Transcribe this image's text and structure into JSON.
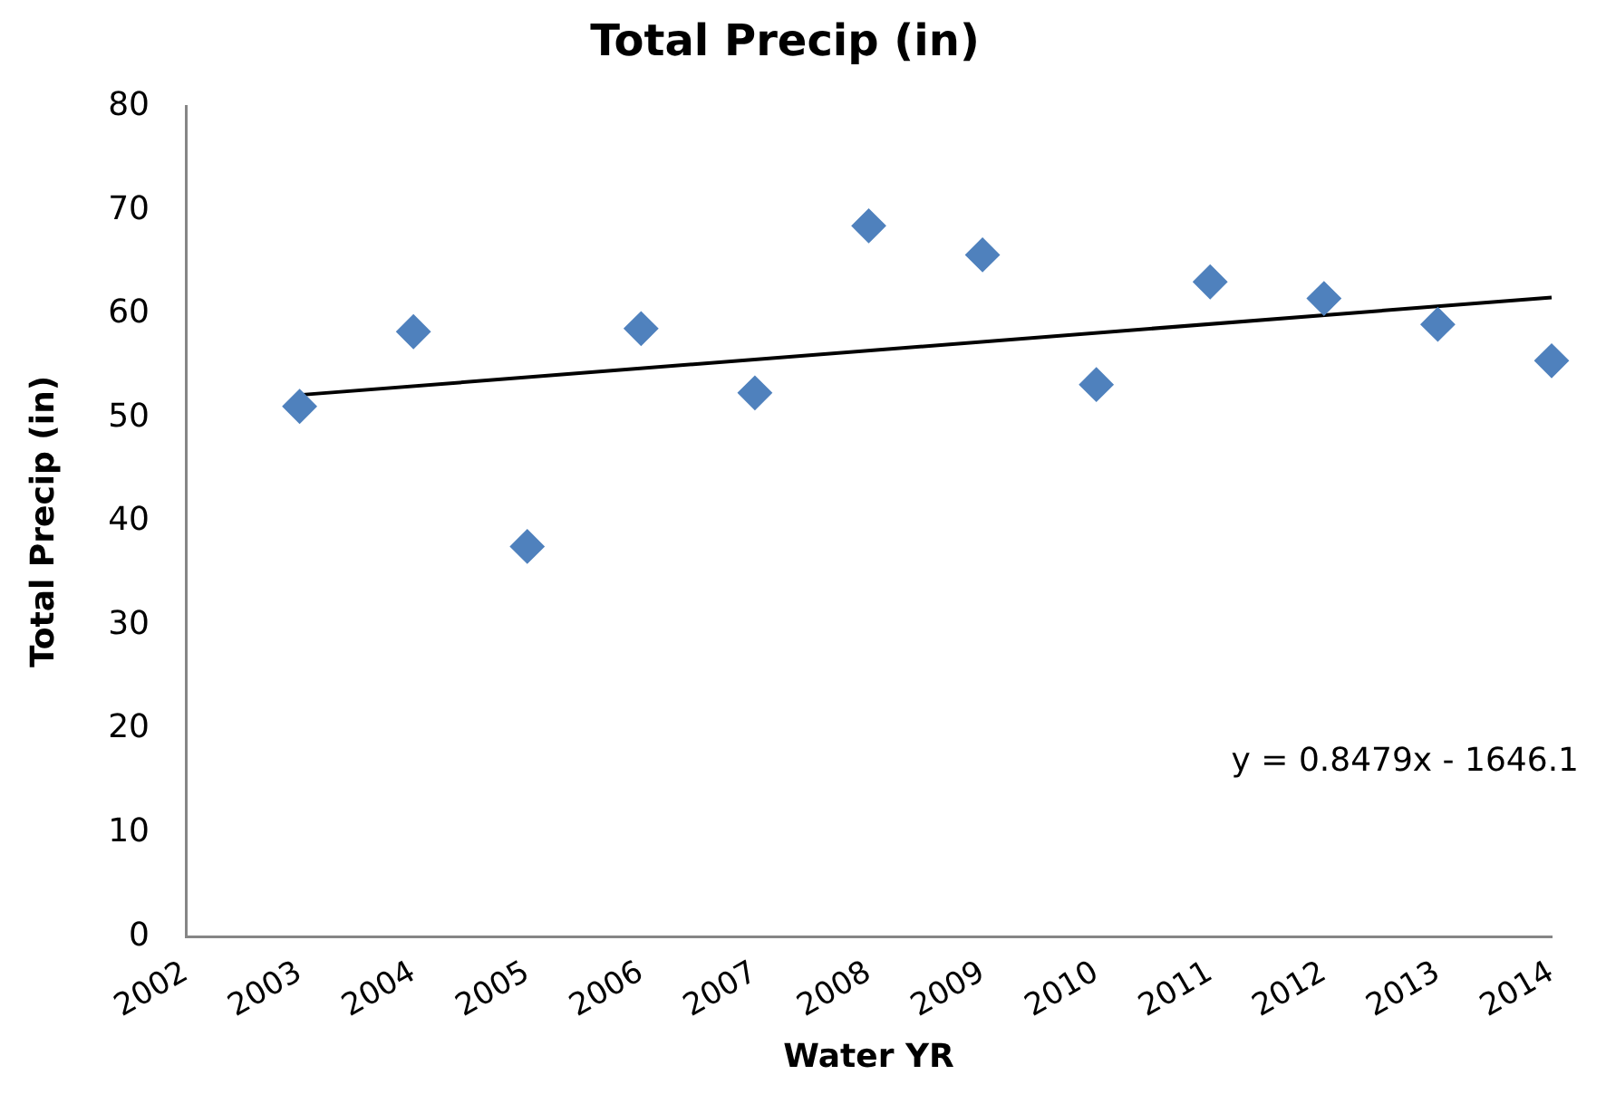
{
  "chart_data": {
    "type": "scatter",
    "title": "Total Precip (in)",
    "xlabel": "Water YR",
    "ylabel": "Total Precip (in)",
    "x": [
      2003,
      2004,
      2005,
      2006,
      2007,
      2008,
      2009,
      2010,
      2011,
      2012,
      2013,
      2014
    ],
    "xlim": [
      2002,
      2014
    ],
    "xticks": [
      2002,
      2003,
      2004,
      2005,
      2006,
      2007,
      2008,
      2009,
      2010,
      2011,
      2012,
      2013,
      2014
    ],
    "ylim": [
      0,
      80
    ],
    "yticks": [
      0,
      10,
      20,
      30,
      40,
      50,
      60,
      70,
      80
    ],
    "series": [
      {
        "color": "#4f81bd",
        "marker": "diamond",
        "values": [
          51.1,
          58.3,
          37.6,
          58.6,
          52.4,
          68.5,
          65.7,
          53.2,
          63.1,
          61.5,
          59.0,
          55.5
        ]
      },
      {
        "type": "line",
        "color": "#000000",
        "marker": "none",
        "line_style": "solid",
        "x": [
          2003,
          2014
        ],
        "values": [
          52.2,
          61.6
        ]
      }
    ],
    "grid": false,
    "legend": false,
    "annotations": [
      "y = 0.8479x - 1646.1"
    ]
  }
}
